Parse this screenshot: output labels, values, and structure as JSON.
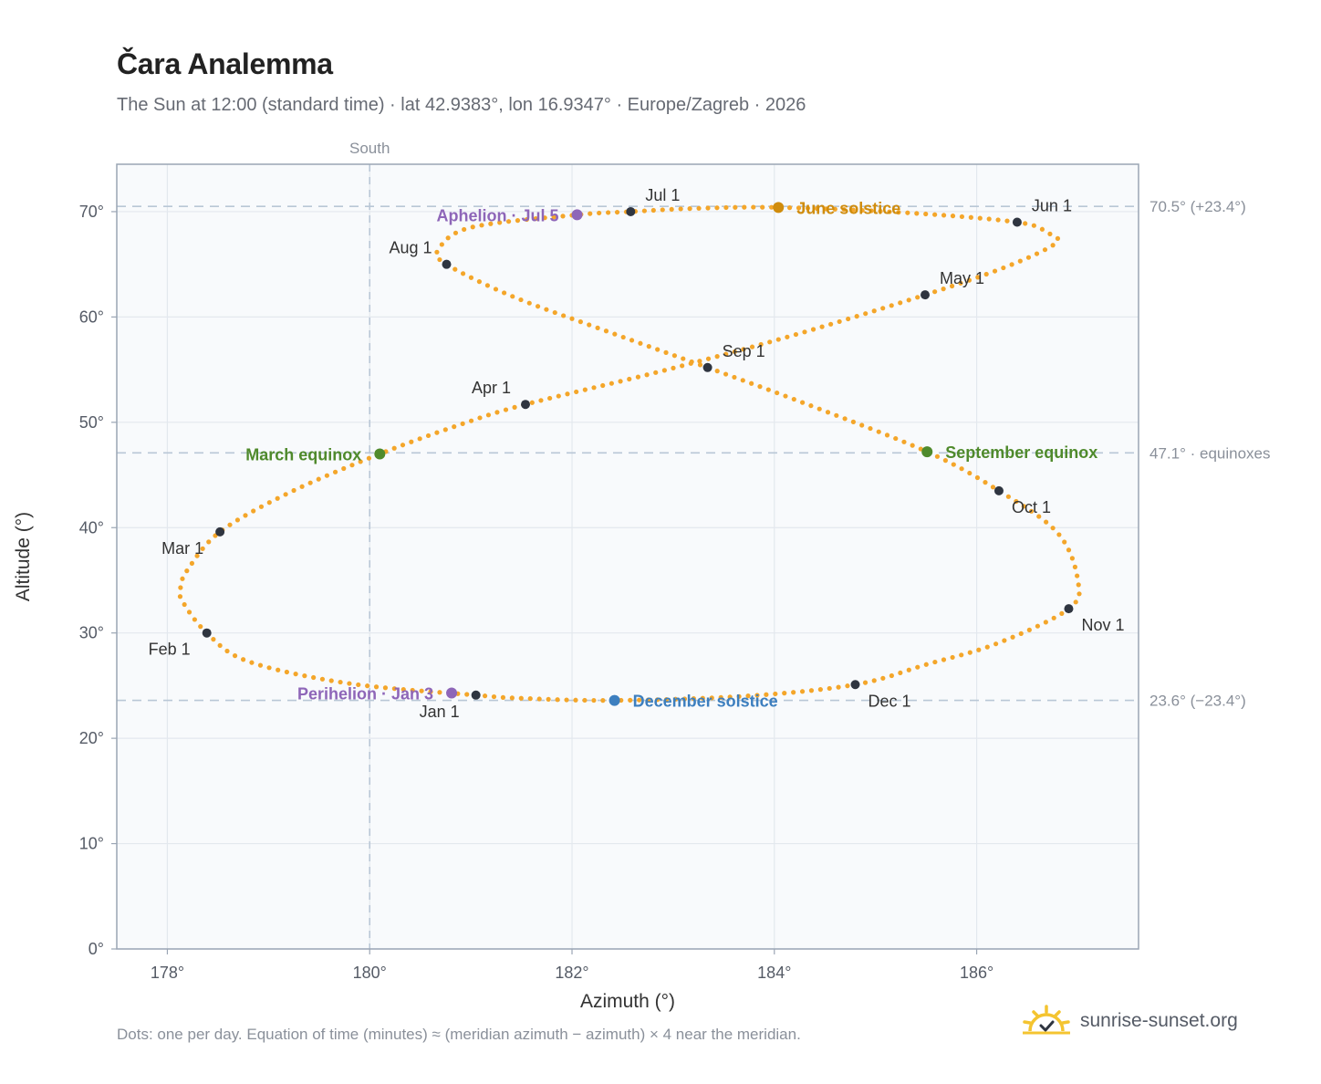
{
  "header": {
    "title": "Čara Analemma",
    "subtitle": "The Sun at 12:00 (standard time) · lat 42.9383°, lon 16.9347° · Europe/Zagreb · 2026"
  },
  "footer": {
    "note": "Dots: one per day. Equation of time (minutes) ≈ (meridian azimuth − azimuth) × 4 near the meridian.",
    "brand": "sunrise-sunset.org"
  },
  "colors": {
    "curve": "#f4a62a",
    "month_marker": "#2f3540",
    "equinox": "#4f8a2c",
    "june_solstice": "#d08c0c",
    "december_solstice": "#3d7fbf",
    "apsis": "#8e66b8",
    "plot_bg": "#f8fafc",
    "grid": "#e3e8ee",
    "reference_line": "#b9c7d6",
    "brand_sun": "#f4c430"
  },
  "chart_data": {
    "type": "scatter",
    "xlabel": "Azimuth (°)",
    "ylabel": "Altitude (°)",
    "xlim": [
      177.5,
      187.6
    ],
    "ylim": [
      0,
      74.5
    ],
    "x_ticks": [
      {
        "value": 178,
        "label": "178°"
      },
      {
        "value": 180,
        "label": "180°"
      },
      {
        "value": 182,
        "label": "182°"
      },
      {
        "value": 184,
        "label": "184°"
      },
      {
        "value": 186,
        "label": "186°"
      }
    ],
    "y_ticks": [
      {
        "value": 0,
        "label": "0°"
      },
      {
        "value": 10,
        "label": "10°"
      },
      {
        "value": 20,
        "label": "20°"
      },
      {
        "value": 30,
        "label": "30°"
      },
      {
        "value": 40,
        "label": "40°"
      },
      {
        "value": 50,
        "label": "50°"
      },
      {
        "value": 60,
        "label": "60°"
      },
      {
        "value": 70,
        "label": "70°"
      }
    ],
    "grid": true,
    "meridian": {
      "azimuth": 180,
      "label": "South"
    },
    "reference_altitudes": [
      {
        "altitude": 70.5,
        "label": "70.5° (+23.4°)"
      },
      {
        "altitude": 47.1,
        "label": "47.1° · equinoxes"
      },
      {
        "altitude": 23.6,
        "label": "23.6° (−23.4°)"
      }
    ],
    "month_markers": [
      {
        "label": "Jan 1",
        "azimuth": 181.05,
        "altitude": 24.1,
        "anchor": "below-left"
      },
      {
        "label": "Feb 1",
        "azimuth": 178.39,
        "altitude": 30.0,
        "anchor": "below-left"
      },
      {
        "label": "Mar 1",
        "azimuth": 178.52,
        "altitude": 39.6,
        "anchor": "below-left"
      },
      {
        "label": "Apr 1",
        "azimuth": 181.54,
        "altitude": 51.7,
        "anchor": "above-left"
      },
      {
        "label": "May 1",
        "azimuth": 185.49,
        "altitude": 62.1,
        "anchor": "above-right"
      },
      {
        "label": "Jun 1",
        "azimuth": 186.4,
        "altitude": 69.0,
        "anchor": "above-right"
      },
      {
        "label": "Jul 1",
        "azimuth": 182.58,
        "altitude": 70.0,
        "anchor": "above-right"
      },
      {
        "label": "Aug 1",
        "azimuth": 180.76,
        "altitude": 65.0,
        "anchor": "above-left"
      },
      {
        "label": "Sep 1",
        "azimuth": 183.34,
        "altitude": 55.2,
        "anchor": "above-right"
      },
      {
        "label": "Oct 1",
        "azimuth": 186.22,
        "altitude": 43.5,
        "anchor": "below-right"
      },
      {
        "label": "Nov 1",
        "azimuth": 186.91,
        "altitude": 32.3,
        "anchor": "below-right"
      },
      {
        "label": "Dec 1",
        "azimuth": 184.8,
        "altitude": 25.1,
        "anchor": "below-right"
      }
    ],
    "events": [
      {
        "label": "June solstice",
        "azimuth": 184.04,
        "altitude": 70.4,
        "color_key": "june_solstice",
        "side": "right"
      },
      {
        "label": "December solstice",
        "azimuth": 182.42,
        "altitude": 23.6,
        "color_key": "december_solstice",
        "side": "right"
      },
      {
        "label": "March equinox",
        "azimuth": 180.1,
        "altitude": 47.0,
        "color_key": "equinox",
        "side": "left"
      },
      {
        "label": "September equinox",
        "azimuth": 185.51,
        "altitude": 47.2,
        "color_key": "equinox",
        "side": "right"
      },
      {
        "label": "Aphelion · Jul 5",
        "azimuth": 182.05,
        "altitude": 69.7,
        "color_key": "apsis",
        "side": "left"
      },
      {
        "label": "Perihelion · Jan 3",
        "azimuth": 180.81,
        "altitude": 24.3,
        "color_key": "apsis",
        "side": "left"
      }
    ],
    "curve_keypoints": [
      [
        181.05,
        24.1
      ],
      [
        179.8,
        25.2
      ],
      [
        178.8,
        27.3
      ],
      [
        178.39,
        30.0
      ],
      [
        178.15,
        33.0
      ],
      [
        178.13,
        34.3
      ],
      [
        178.2,
        36.0
      ],
      [
        178.52,
        39.6
      ],
      [
        179.2,
        43.3
      ],
      [
        180.1,
        47.0
      ],
      [
        180.9,
        49.8
      ],
      [
        181.54,
        51.7
      ],
      [
        182.9,
        54.9
      ],
      [
        184.2,
        58.3
      ],
      [
        185.49,
        62.1
      ],
      [
        186.3,
        64.8
      ],
      [
        186.78,
        67.0
      ],
      [
        186.7,
        68.0
      ],
      [
        186.4,
        69.0
      ],
      [
        185.3,
        69.9
      ],
      [
        184.04,
        70.4
      ],
      [
        183.2,
        70.3
      ],
      [
        182.58,
        70.0
      ],
      [
        182.05,
        69.7
      ],
      [
        181.0,
        68.5
      ],
      [
        180.68,
        66.4
      ],
      [
        180.76,
        65.0
      ],
      [
        181.4,
        62.0
      ],
      [
        182.3,
        58.8
      ],
      [
        183.34,
        55.2
      ],
      [
        184.3,
        51.8
      ],
      [
        185.51,
        47.2
      ],
      [
        186.22,
        43.5
      ],
      [
        186.8,
        39.5
      ],
      [
        187.0,
        35.0
      ],
      [
        186.91,
        32.3
      ],
      [
        186.2,
        29.0
      ],
      [
        185.5,
        27.0
      ],
      [
        184.8,
        25.1
      ],
      [
        183.7,
        24.0
      ],
      [
        182.42,
        23.6
      ],
      [
        181.5,
        23.8
      ],
      [
        181.05,
        24.1
      ]
    ]
  }
}
